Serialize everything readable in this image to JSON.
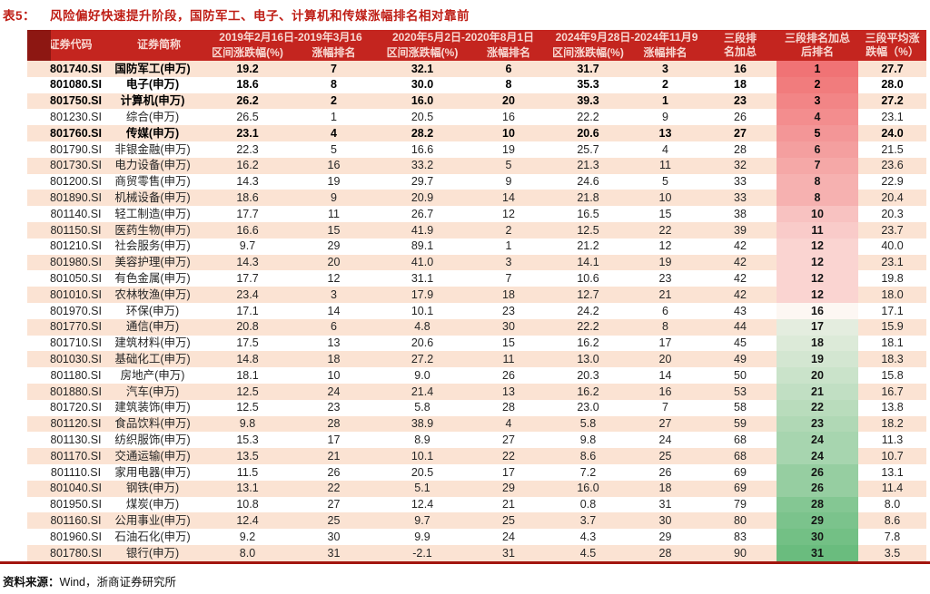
{
  "title": {
    "label": "表5：",
    "text": "风险偏好快速提升阶段，国防军工、电子、计算机和传媒涨幅排名相对靠前"
  },
  "colors": {
    "title": "#bf1e16",
    "header_bg": "#c4251f",
    "header_text": "#f8d8d2",
    "header_left_cap": "#8d1712",
    "row_stripe": "#fbe3d3",
    "bottom_rule": "#a2150e",
    "rank_gradient_red": "#f07375",
    "rank_gradient_mid": "#fdf7f3",
    "rank_gradient_green": "#6abc7e"
  },
  "table": {
    "header": {
      "code": "证券代码",
      "name": "证券简称",
      "periods": [
        {
          "range": "2019年2月16日-2019年3月16",
          "change": "区间涨跌幅(%)",
          "rank": "涨幅排名"
        },
        {
          "range": "2020年5月2日-2020年8月1日",
          "change": "区间涨跌幅(%)",
          "rank": "涨幅排名"
        },
        {
          "range": "2024年9月28日-2024年11月9",
          "change": "区间涨跌幅(%)",
          "rank": "涨幅排名"
        }
      ],
      "sum": "三段排名加总",
      "final_rank": "三段排名加总后排名",
      "avg": "三段平均涨跌幅（%）"
    },
    "rows": [
      {
        "code": "801740.SI",
        "name": "国防军工(申万)",
        "v1": "19.2",
        "r1": "7",
        "v2": "32.1",
        "r2": "6",
        "v3": "31.7",
        "r3": "3",
        "sum": "16",
        "rank": "1",
        "avg": "27.7",
        "bold": true
      },
      {
        "code": "801080.SI",
        "name": "电子(申万)",
        "v1": "18.6",
        "r1": "8",
        "v2": "30.0",
        "r2": "8",
        "v3": "35.3",
        "r3": "2",
        "sum": "18",
        "rank": "2",
        "avg": "28.0",
        "bold": true
      },
      {
        "code": "801750.SI",
        "name": "计算机(申万)",
        "v1": "26.2",
        "r1": "2",
        "v2": "16.0",
        "r2": "20",
        "v3": "39.3",
        "r3": "1",
        "sum": "23",
        "rank": "3",
        "avg": "27.2",
        "bold": true
      },
      {
        "code": "801230.SI",
        "name": "综合(申万)",
        "v1": "26.5",
        "r1": "1",
        "v2": "20.5",
        "r2": "16",
        "v3": "22.2",
        "r3": "9",
        "sum": "26",
        "rank": "4",
        "avg": "23.1",
        "bold": false
      },
      {
        "code": "801760.SI",
        "name": "传媒(申万)",
        "v1": "23.1",
        "r1": "4",
        "v2": "28.2",
        "r2": "10",
        "v3": "20.6",
        "r3": "13",
        "sum": "27",
        "rank": "5",
        "avg": "24.0",
        "bold": true
      },
      {
        "code": "801790.SI",
        "name": "非银金融(申万)",
        "v1": "22.3",
        "r1": "5",
        "v2": "16.6",
        "r2": "19",
        "v3": "25.7",
        "r3": "4",
        "sum": "28",
        "rank": "6",
        "avg": "21.5",
        "bold": false
      },
      {
        "code": "801730.SI",
        "name": "电力设备(申万)",
        "v1": "16.2",
        "r1": "16",
        "v2": "33.2",
        "r2": "5",
        "v3": "21.3",
        "r3": "11",
        "sum": "32",
        "rank": "7",
        "avg": "23.6",
        "bold": false
      },
      {
        "code": "801200.SI",
        "name": "商贸零售(申万)",
        "v1": "14.3",
        "r1": "19",
        "v2": "29.7",
        "r2": "9",
        "v3": "24.6",
        "r3": "5",
        "sum": "33",
        "rank": "8",
        "avg": "22.9",
        "bold": false
      },
      {
        "code": "801890.SI",
        "name": "机械设备(申万)",
        "v1": "18.6",
        "r1": "9",
        "v2": "20.9",
        "r2": "14",
        "v3": "21.8",
        "r3": "10",
        "sum": "33",
        "rank": "8",
        "avg": "20.4",
        "bold": false
      },
      {
        "code": "801140.SI",
        "name": "轻工制造(申万)",
        "v1": "17.7",
        "r1": "11",
        "v2": "26.7",
        "r2": "12",
        "v3": "16.5",
        "r3": "15",
        "sum": "38",
        "rank": "10",
        "avg": "20.3",
        "bold": false
      },
      {
        "code": "801150.SI",
        "name": "医药生物(申万)",
        "v1": "16.6",
        "r1": "15",
        "v2": "41.9",
        "r2": "2",
        "v3": "12.5",
        "r3": "22",
        "sum": "39",
        "rank": "11",
        "avg": "23.7",
        "bold": false
      },
      {
        "code": "801210.SI",
        "name": "社会服务(申万)",
        "v1": "9.7",
        "r1": "29",
        "v2": "89.1",
        "r2": "1",
        "v3": "21.2",
        "r3": "12",
        "sum": "42",
        "rank": "12",
        "avg": "40.0",
        "bold": false
      },
      {
        "code": "801980.SI",
        "name": "美容护理(申万)",
        "v1": "14.3",
        "r1": "20",
        "v2": "41.0",
        "r2": "3",
        "v3": "14.1",
        "r3": "19",
        "sum": "42",
        "rank": "12",
        "avg": "23.1",
        "bold": false
      },
      {
        "code": "801050.SI",
        "name": "有色金属(申万)",
        "v1": "17.7",
        "r1": "12",
        "v2": "31.1",
        "r2": "7",
        "v3": "10.6",
        "r3": "23",
        "sum": "42",
        "rank": "12",
        "avg": "19.8",
        "bold": false
      },
      {
        "code": "801010.SI",
        "name": "农林牧渔(申万)",
        "v1": "23.4",
        "r1": "3",
        "v2": "17.9",
        "r2": "18",
        "v3": "12.7",
        "r3": "21",
        "sum": "42",
        "rank": "12",
        "avg": "18.0",
        "bold": false
      },
      {
        "code": "801970.SI",
        "name": "环保(申万)",
        "v1": "17.1",
        "r1": "14",
        "v2": "10.1",
        "r2": "23",
        "v3": "24.2",
        "r3": "6",
        "sum": "43",
        "rank": "16",
        "avg": "17.1",
        "bold": false
      },
      {
        "code": "801770.SI",
        "name": "通信(申万)",
        "v1": "20.8",
        "r1": "6",
        "v2": "4.8",
        "r2": "30",
        "v3": "22.2",
        "r3": "8",
        "sum": "44",
        "rank": "17",
        "avg": "15.9",
        "bold": false
      },
      {
        "code": "801710.SI",
        "name": "建筑材料(申万)",
        "v1": "17.5",
        "r1": "13",
        "v2": "20.6",
        "r2": "15",
        "v3": "16.2",
        "r3": "17",
        "sum": "45",
        "rank": "18",
        "avg": "18.1",
        "bold": false
      },
      {
        "code": "801030.SI",
        "name": "基础化工(申万)",
        "v1": "14.8",
        "r1": "18",
        "v2": "27.2",
        "r2": "11",
        "v3": "13.0",
        "r3": "20",
        "sum": "49",
        "rank": "19",
        "avg": "18.3",
        "bold": false
      },
      {
        "code": "801180.SI",
        "name": "房地产(申万)",
        "v1": "18.1",
        "r1": "10",
        "v2": "9.0",
        "r2": "26",
        "v3": "20.3",
        "r3": "14",
        "sum": "50",
        "rank": "20",
        "avg": "15.8",
        "bold": false
      },
      {
        "code": "801880.SI",
        "name": "汽车(申万)",
        "v1": "12.5",
        "r1": "24",
        "v2": "21.4",
        "r2": "13",
        "v3": "16.2",
        "r3": "16",
        "sum": "53",
        "rank": "21",
        "avg": "16.7",
        "bold": false
      },
      {
        "code": "801720.SI",
        "name": "建筑装饰(申万)",
        "v1": "12.5",
        "r1": "23",
        "v2": "5.8",
        "r2": "28",
        "v3": "23.0",
        "r3": "7",
        "sum": "58",
        "rank": "22",
        "avg": "13.8",
        "bold": false
      },
      {
        "code": "801120.SI",
        "name": "食品饮料(申万)",
        "v1": "9.8",
        "r1": "28",
        "v2": "38.9",
        "r2": "4",
        "v3": "5.8",
        "r3": "27",
        "sum": "59",
        "rank": "23",
        "avg": "18.2",
        "bold": false
      },
      {
        "code": "801130.SI",
        "name": "纺织服饰(申万)",
        "v1": "15.3",
        "r1": "17",
        "v2": "8.9",
        "r2": "27",
        "v3": "9.8",
        "r3": "24",
        "sum": "68",
        "rank": "24",
        "avg": "11.3",
        "bold": false
      },
      {
        "code": "801170.SI",
        "name": "交通运输(申万)",
        "v1": "13.5",
        "r1": "21",
        "v2": "10.1",
        "r2": "22",
        "v3": "8.6",
        "r3": "25",
        "sum": "68",
        "rank": "24",
        "avg": "10.7",
        "bold": false
      },
      {
        "code": "801110.SI",
        "name": "家用电器(申万)",
        "v1": "11.5",
        "r1": "26",
        "v2": "20.5",
        "r2": "17",
        "v3": "7.2",
        "r3": "26",
        "sum": "69",
        "rank": "26",
        "avg": "13.1",
        "bold": false
      },
      {
        "code": "801040.SI",
        "name": "钢铁(申万)",
        "v1": "13.1",
        "r1": "22",
        "v2": "5.1",
        "r2": "29",
        "v3": "16.0",
        "r3": "18",
        "sum": "69",
        "rank": "26",
        "avg": "11.4",
        "bold": false
      },
      {
        "code": "801950.SI",
        "name": "煤炭(申万)",
        "v1": "10.8",
        "r1": "27",
        "v2": "12.4",
        "r2": "21",
        "v3": "0.8",
        "r3": "31",
        "sum": "79",
        "rank": "28",
        "avg": "8.0",
        "bold": false
      },
      {
        "code": "801160.SI",
        "name": "公用事业(申万)",
        "v1": "12.4",
        "r1": "25",
        "v2": "9.7",
        "r2": "25",
        "v3": "3.7",
        "r3": "30",
        "sum": "80",
        "rank": "29",
        "avg": "8.6",
        "bold": false
      },
      {
        "code": "801960.SI",
        "name": "石油石化(申万)",
        "v1": "9.2",
        "r1": "30",
        "v2": "9.9",
        "r2": "24",
        "v3": "4.3",
        "r3": "29",
        "sum": "83",
        "rank": "30",
        "avg": "7.8",
        "bold": false
      },
      {
        "code": "801780.SI",
        "name": "银行(申万)",
        "v1": "8.0",
        "r1": "31",
        "v2": "-2.1",
        "r2": "31",
        "v3": "4.5",
        "r3": "28",
        "sum": "90",
        "rank": "31",
        "avg": "3.5",
        "bold": false
      }
    ]
  },
  "footer": {
    "label": "资料来源：",
    "text": "Wind，浙商证券研究所"
  }
}
